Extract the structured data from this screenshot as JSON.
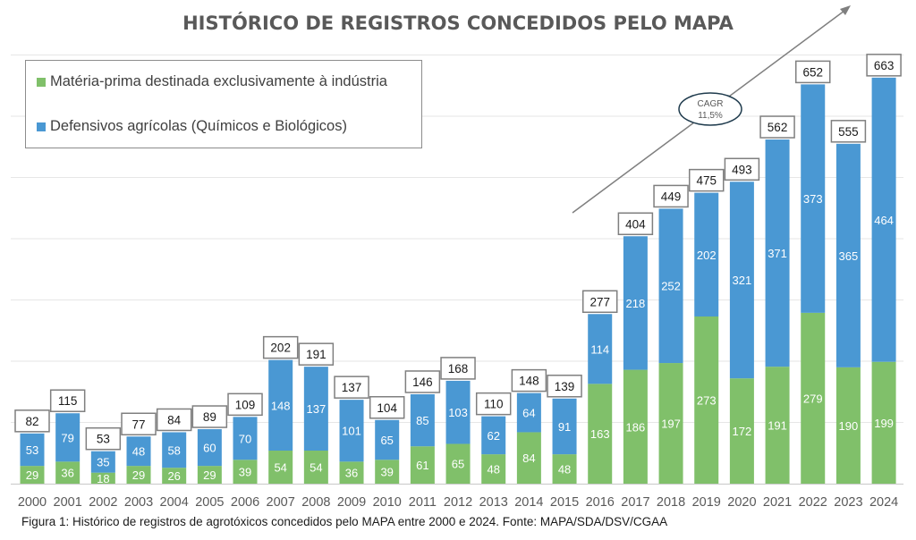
{
  "chart_data": {
    "type": "bar",
    "stacked": true,
    "title": "HISTÓRICO DE REGISTROS CONCEDIDOS PELO MAPA",
    "xlabel": "",
    "ylabel": "",
    "ylim": [
      0,
      700
    ],
    "grid": true,
    "y_gridlines": [
      100,
      200,
      300,
      400,
      500,
      600,
      700
    ],
    "legend_position": "top-left",
    "categories": [
      "2000",
      "2001",
      "2002",
      "2003",
      "2004",
      "2005",
      "2006",
      "2007",
      "2008",
      "2009",
      "2010",
      "2011",
      "2012",
      "2013",
      "2014",
      "2015",
      "2016",
      "2017",
      "2018",
      "2019",
      "2020",
      "2021",
      "2022",
      "2023",
      "2024"
    ],
    "series": [
      {
        "name": "Matéria-prima destinada exclusivamente à indústria",
        "color": "#80c06a",
        "values": [
          29,
          36,
          18,
          29,
          26,
          29,
          39,
          54,
          54,
          36,
          39,
          61,
          65,
          48,
          84,
          48,
          163,
          186,
          197,
          273,
          172,
          191,
          279,
          190,
          199
        ]
      },
      {
        "name": "Defensivos agrícolas (Químicos e Biológicos)",
        "color": "#4a98d3",
        "values": [
          53,
          79,
          35,
          48,
          58,
          60,
          70,
          148,
          137,
          101,
          65,
          85,
          103,
          62,
          64,
          91,
          114,
          218,
          252,
          202,
          321,
          371,
          373,
          365,
          464
        ]
      }
    ],
    "totals": [
      82,
      115,
      53,
      77,
      84,
      89,
      109,
      202,
      191,
      137,
      104,
      146,
      168,
      110,
      148,
      139,
      277,
      404,
      449,
      475,
      493,
      562,
      652,
      555,
      663
    ],
    "annotations": [
      {
        "type": "arrow",
        "label_lines": [
          "CAGR",
          "11,5%"
        ],
        "description": "trend arrow with CAGR ellipse"
      }
    ]
  },
  "legend": {
    "items": [
      {
        "label": "Matéria-prima destinada exclusivamente à indústria",
        "color": "#80c06a"
      },
      {
        "label": "Defensivos agrícolas (Químicos e Biológicos)",
        "color": "#4a98d3"
      }
    ]
  },
  "cagr": {
    "line1": "CAGR",
    "line2": "11,5%"
  },
  "caption": "Figura 1: Histórico de registros de agrotóxicos concedidos pelo MAPA entre 2000 e 2024. Fonte: MAPA/SDA/DSV/CGAA"
}
